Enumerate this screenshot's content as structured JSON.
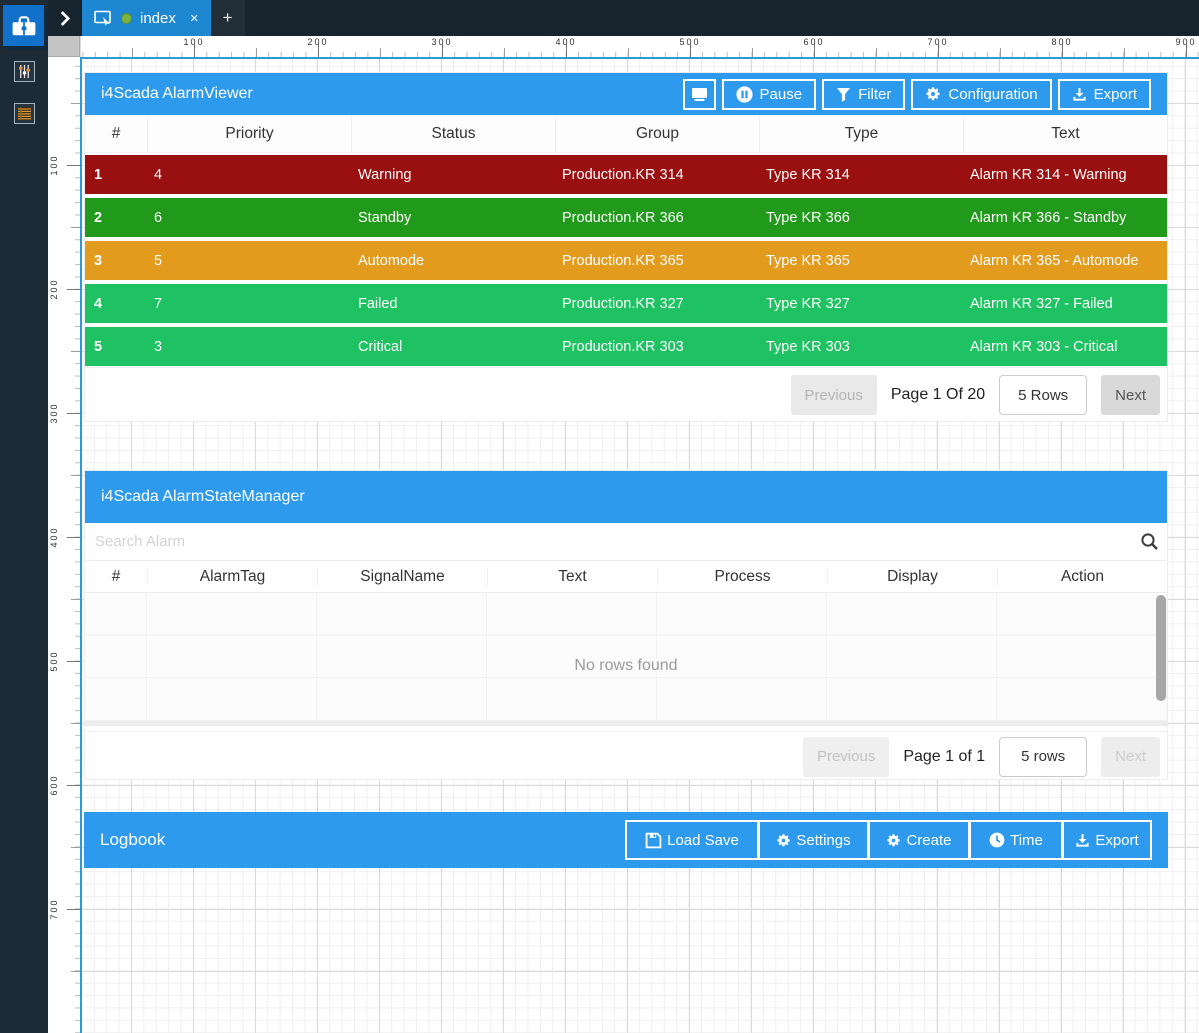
{
  "tabbar": {
    "tab_title": "index",
    "close_label": "×",
    "new_tab_label": "+"
  },
  "rulers": {
    "horizontal": [
      "100",
      "200",
      "300",
      "400",
      "500",
      "600",
      "700",
      "800",
      "900"
    ],
    "vertical": [
      "100",
      "200",
      "300",
      "400",
      "500",
      "600",
      "700"
    ]
  },
  "colors": {
    "accent_blue": "#2e9aee",
    "active_tab_blue": "#1d87d2",
    "logo_blue": "#1170c9",
    "row_red": "#9a0f10",
    "row_green": "#219a1b",
    "row_orange": "#e29b1d",
    "row_emerald": "#1fc262"
  },
  "alarm_viewer": {
    "title": "i4Scada AlarmViewer",
    "toolbar": {
      "pause": "Pause",
      "filter": "Filter",
      "configuration": "Configuration",
      "export": "Export"
    },
    "columns": [
      "#",
      "Priority",
      "Status",
      "Group",
      "Type",
      "Text"
    ],
    "rows": [
      {
        "color": "#9a0f10",
        "cells": [
          "1",
          "4",
          "Warning",
          "Production.KR 314",
          "Type KR 314",
          "Alarm KR 314 - Warning"
        ]
      },
      {
        "color": "#219a1b",
        "cells": [
          "2",
          "6",
          "Standby",
          "Production.KR 366",
          "Type KR 366",
          "Alarm KR 366 - Standby"
        ]
      },
      {
        "color": "#e29b1d",
        "cells": [
          "3",
          "5",
          "Automode",
          "Production.KR 365",
          "Type KR 365",
          "Alarm KR 365 - Automode"
        ]
      },
      {
        "color": "#1fc262",
        "cells": [
          "4",
          "7",
          "Failed",
          "Production.KR 327",
          "Type KR 327",
          "Alarm KR 327 - Failed"
        ]
      },
      {
        "color": "#1fc262",
        "cells": [
          "5",
          "3",
          "Critical",
          "Production.KR 303",
          "Type KR 303",
          "Alarm KR 303 - Critical"
        ]
      }
    ],
    "pagination": {
      "previous": "Previous",
      "page": "Page 1 Of 20",
      "rows": "5 Rows",
      "next": "Next"
    }
  },
  "alarm_state_manager": {
    "title": "i4Scada AlarmStateManager",
    "search_placeholder": "Search Alarm",
    "columns": [
      "#",
      "AlarmTag",
      "SignalName",
      "Text",
      "Process",
      "Display",
      "Action"
    ],
    "empty_text": "No rows found",
    "pagination": {
      "previous": "Previous",
      "page": "Page 1 of 1",
      "rows": "5 rows",
      "next": "Next"
    }
  },
  "logbook": {
    "title": "Logbook",
    "buttons": [
      "Load Save",
      "Settings",
      "Create",
      "Time",
      "Export"
    ]
  }
}
